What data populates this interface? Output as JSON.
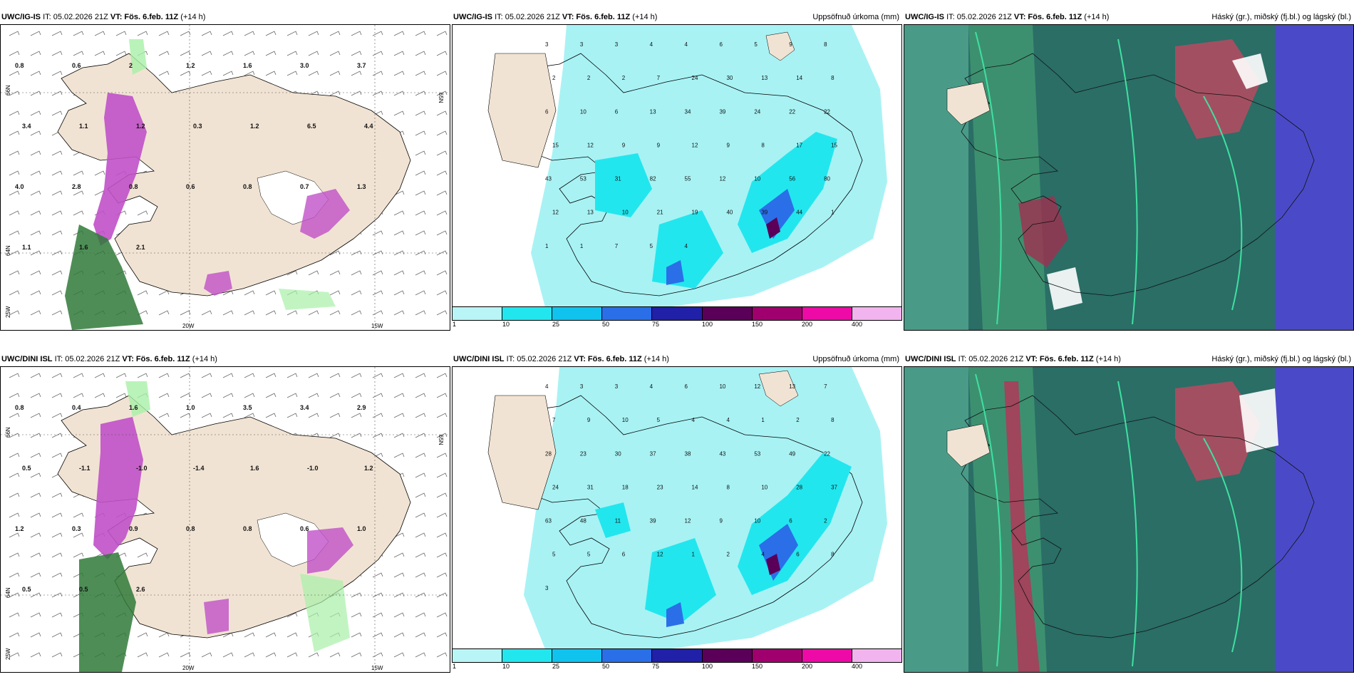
{
  "rows": [
    {
      "id": "row1",
      "model": "UWC/IG-IS",
      "it": "IT: 05.02.2026 21Z",
      "vt_label": "VT:",
      "vt": "Fös. 6.feb. 11Z",
      "lead": "(+14 h)",
      "precip_title": "Uppsöfnuð úrkoma (mm)",
      "cloud_title": "Háský (gr.), miðský (fj.bl.) og lágský (bl.)",
      "lat_labels": [
        "66N",
        "64N",
        "65N"
      ],
      "lon_labels": [
        "25W",
        "20W",
        "15W"
      ],
      "left_values": [
        "0.8",
        "0.6",
        "2",
        "1.2",
        "1.6",
        "3.0",
        "3.7",
        "3.4",
        "1.1",
        "1.2",
        "0.3",
        "1.2",
        "6.5",
        "4.4",
        "4.0",
        "2.8",
        "0.8",
        "0.6",
        "0.8",
        "0.7",
        "1.3",
        "1.1",
        "1.6",
        "2.1"
      ],
      "precip_values": [
        "3",
        "3",
        "3",
        "4",
        "4",
        "6",
        "5",
        "9",
        "8",
        "2",
        "2",
        "2",
        "7",
        "24",
        "30",
        "13",
        "14",
        "8",
        "6",
        "10",
        "6",
        "13",
        "34",
        "39",
        "24",
        "22",
        "22",
        "15",
        "12",
        "9",
        "9",
        "12",
        "9",
        "8",
        "17",
        "15",
        "43",
        "53",
        "31",
        "82",
        "55",
        "12",
        "10",
        "56",
        "80",
        "12",
        "13",
        "10",
        "21",
        "19",
        "40",
        "39",
        "44",
        "1",
        "1",
        "1",
        "7",
        "5",
        "4"
      ]
    },
    {
      "id": "row2",
      "model": "UWC/DINI ISL",
      "it": "IT: 05.02.2026 21Z",
      "vt_label": "VT:",
      "vt": "Fös. 6.feb. 11Z",
      "lead": "(+14 h)",
      "precip_title": "Uppsöfnuð úrkoma (mm)",
      "cloud_title": "Háský (gr.), miðský (fj.bl.) og lágský (bl.)",
      "lat_labels": [
        "66N",
        "64N",
        "65N"
      ],
      "lon_labels": [
        "25W",
        "20W",
        "15W"
      ],
      "left_values": [
        "0.8",
        "0.4",
        "1.6",
        "1.0",
        "3.5",
        "3.4",
        "2.9",
        "0.5",
        "-1.1",
        "-1.0",
        "-1.4",
        "1.6",
        "-1.0",
        "1.2",
        "1.2",
        "0.3",
        "0.9",
        "0.8",
        "0.8",
        "0.6",
        "1.0",
        "0.5",
        "0.5",
        "2.6"
      ],
      "precip_values": [
        "4",
        "3",
        "3",
        "4",
        "6",
        "10",
        "12",
        "13",
        "7",
        "7",
        "9",
        "10",
        "5",
        "4",
        "4",
        "1",
        "2",
        "8",
        "28",
        "23",
        "30",
        "37",
        "38",
        "43",
        "53",
        "49",
        "22",
        "24",
        "31",
        "18",
        "23",
        "14",
        "8",
        "10",
        "28",
        "37",
        "63",
        "48",
        "11",
        "39",
        "12",
        "9",
        "10",
        "6",
        "2",
        "5",
        "5",
        "6",
        "12",
        "1",
        "2",
        "4",
        "6",
        "8",
        "3"
      ]
    }
  ],
  "colorbar": {
    "labels": [
      "1",
      "10",
      "25",
      "50",
      "75",
      "100",
      "150",
      "200",
      "400"
    ],
    "colors": [
      "#b9f5f7",
      "#22e6ee",
      "#10c2ee",
      "#2a6fe8",
      "#2020a8",
      "#5a0058",
      "#a0006e",
      "#ee0aa6",
      "#f2b4ee"
    ]
  },
  "colors": {
    "land": "#f1e3d3",
    "sea": "#ffffff",
    "precip_light": "#a8f2f4",
    "magenta": "#c050c8",
    "green": "#2f7a38",
    "cloud_bg": "#2a6e66",
    "cloud_blue": "#4a4ac8"
  }
}
